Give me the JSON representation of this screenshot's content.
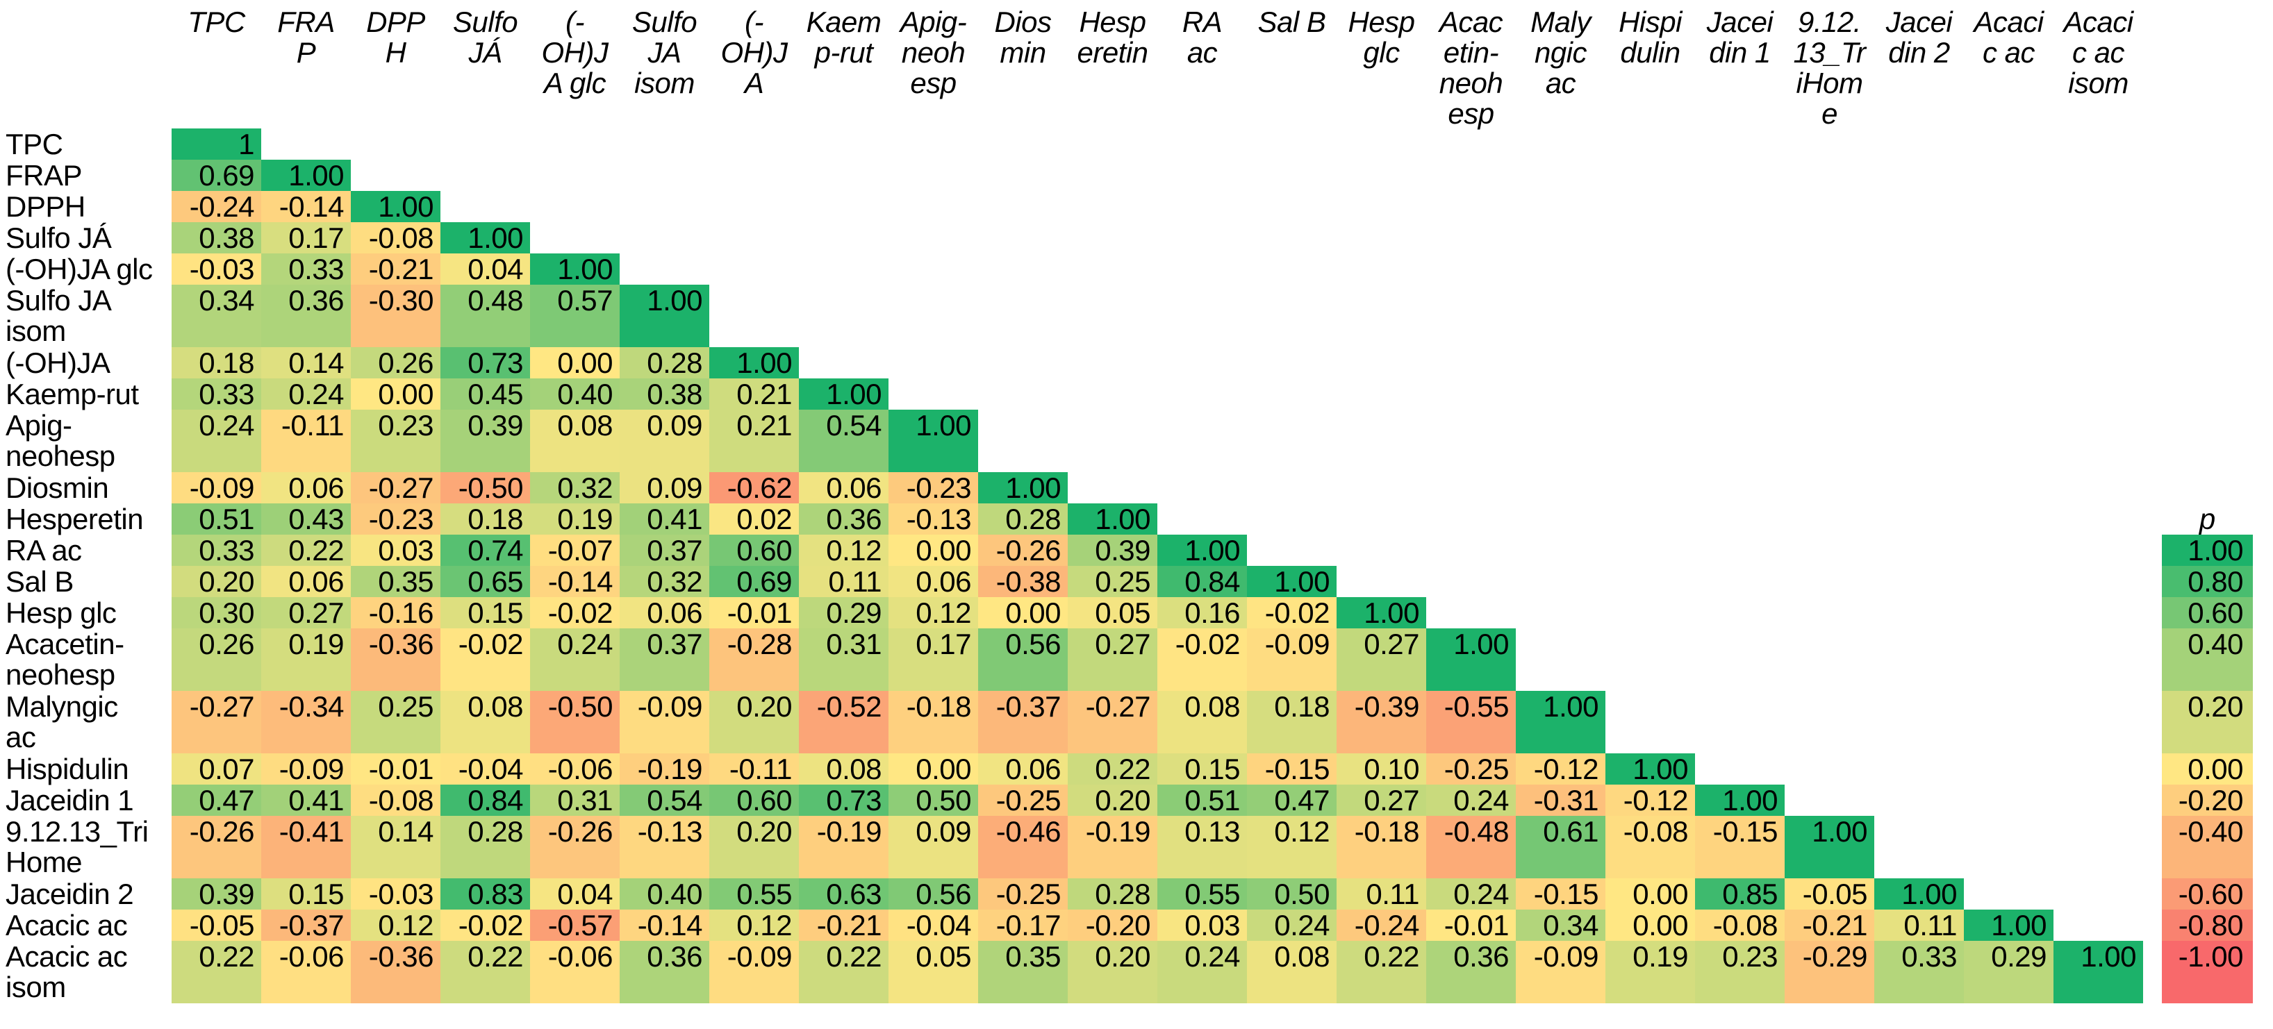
{
  "legend": {
    "header": "p"
  },
  "chart_data": {
    "type": "heatmap",
    "subtype": "correlation-matrix-lower-triangular",
    "title": "",
    "xlabel": "",
    "ylabel": "",
    "grid": false,
    "legend_position": "right",
    "categories": [
      "TPC",
      "FRAP",
      "DPPH",
      "Sulfo JÁ",
      "(-OH)JA glc",
      "Sulfo JA isom",
      "(-OH)JA",
      "Kaemp-rut",
      "Apig-neohesp",
      "Diosmin",
      "Hesperetin",
      "RA ac",
      "Sal B",
      "Hesp glc",
      "Acacetin-neohesp",
      "Malyngic ac",
      "Hispidulin",
      "Jaceidin 1",
      "9.12.13_TriHome",
      "Jaceidin 2",
      "Acacic ac",
      "Acacic ac isom"
    ],
    "row_labels_display": [
      "TPC",
      "FRAP",
      "DPPH",
      "Sulfo JÁ",
      "(-OH)JA glc",
      "Sulfo JA\nisom",
      "(-OH)JA",
      "Kaemp-rut",
      "Apig-\nneohesp",
      "Diosmin",
      "Hesperetin",
      "RA ac",
      "Sal B",
      "Hesp glc",
      "Acacetin-\nneohesp",
      "Malyngic\nac",
      "Hispidulin",
      "Jaceidin 1",
      "9.12.13_Tri\nHome",
      "Jaceidin 2",
      "Acacic ac",
      "Acacic ac\nisom"
    ],
    "col_labels_display": [
      "TPC",
      "FRA\nP",
      "DPP\nH",
      "Sulfo\nJÁ",
      "(-\nOH)J\nA glc",
      "Sulfo\nJA\nisom",
      "(-\nOH)J\nA",
      "Kaem\np-rut",
      "Apig-\nneoh\nesp",
      "Dios\nmin",
      "Hesp\neretin",
      "RA\nac",
      "Sal B",
      "Hesp\nglc",
      "Acac\netin-\nneoh\nesp",
      "Maly\nngic\nac",
      "Hispi\ndulin",
      "Jacei\ndin 1",
      "9.12.\n13_Tr\niHom\ne",
      "Jacei\ndin 2",
      "Acaci\nc ac",
      "Acaci\nc ac\nisom"
    ],
    "matrix_lower_triangle": [
      [
        1
      ],
      [
        0.69,
        1.0
      ],
      [
        -0.24,
        -0.14,
        1.0
      ],
      [
        0.38,
        0.17,
        -0.08,
        1.0
      ],
      [
        -0.03,
        0.33,
        -0.21,
        0.04,
        1.0
      ],
      [
        0.34,
        0.36,
        -0.3,
        0.48,
        0.57,
        1.0
      ],
      [
        0.18,
        0.14,
        0.26,
        0.73,
        0.0,
        0.28,
        1.0
      ],
      [
        0.33,
        0.24,
        0.0,
        0.45,
        0.4,
        0.38,
        0.21,
        1.0
      ],
      [
        0.24,
        -0.11,
        0.23,
        0.39,
        0.08,
        0.09,
        0.21,
        0.54,
        1.0
      ],
      [
        -0.09,
        0.06,
        -0.27,
        -0.5,
        0.32,
        0.09,
        -0.62,
        0.06,
        -0.23,
        1.0
      ],
      [
        0.51,
        0.43,
        -0.23,
        0.18,
        0.19,
        0.41,
        0.02,
        0.36,
        -0.13,
        0.28,
        1.0
      ],
      [
        0.33,
        0.22,
        0.03,
        0.74,
        -0.07,
        0.37,
        0.6,
        0.12,
        0.0,
        -0.26,
        0.39,
        1.0
      ],
      [
        0.2,
        0.06,
        0.35,
        0.65,
        -0.14,
        0.32,
        0.69,
        0.11,
        0.06,
        -0.38,
        0.25,
        0.84,
        1.0
      ],
      [
        0.3,
        0.27,
        -0.16,
        0.15,
        -0.02,
        0.06,
        -0.01,
        0.29,
        0.12,
        0.0,
        0.05,
        0.16,
        -0.02,
        1.0
      ],
      [
        0.26,
        0.19,
        -0.36,
        -0.02,
        0.24,
        0.37,
        -0.28,
        0.31,
        0.17,
        0.56,
        0.27,
        -0.02,
        -0.09,
        0.27,
        1.0
      ],
      [
        -0.27,
        -0.34,
        0.25,
        0.08,
        -0.5,
        -0.09,
        0.2,
        -0.52,
        -0.18,
        -0.37,
        -0.27,
        0.08,
        0.18,
        -0.39,
        -0.55,
        1.0
      ],
      [
        0.07,
        -0.09,
        -0.01,
        -0.04,
        -0.06,
        -0.19,
        -0.11,
        0.08,
        0.0,
        0.06,
        0.22,
        0.15,
        -0.15,
        0.1,
        -0.25,
        -0.12,
        1.0
      ],
      [
        0.47,
        0.41,
        -0.08,
        0.84,
        0.31,
        0.54,
        0.6,
        0.73,
        0.5,
        -0.25,
        0.2,
        0.51,
        0.47,
        0.27,
        0.24,
        -0.31,
        -0.12,
        1.0
      ],
      [
        -0.26,
        -0.41,
        0.14,
        0.28,
        -0.26,
        -0.13,
        0.2,
        -0.19,
        0.09,
        -0.46,
        -0.19,
        0.13,
        0.12,
        -0.18,
        -0.48,
        0.61,
        -0.08,
        -0.15,
        1.0
      ],
      [
        0.39,
        0.15,
        -0.03,
        0.83,
        0.04,
        0.4,
        0.55,
        0.63,
        0.56,
        -0.25,
        0.28,
        0.55,
        0.5,
        0.11,
        0.24,
        -0.15,
        0.0,
        0.85,
        -0.05,
        1.0
      ],
      [
        -0.05,
        -0.37,
        0.12,
        -0.02,
        -0.57,
        -0.14,
        0.12,
        -0.21,
        -0.04,
        -0.17,
        -0.2,
        0.03,
        0.24,
        -0.24,
        -0.01,
        0.34,
        0.0,
        -0.08,
        -0.21,
        0.11,
        1.0
      ],
      [
        0.22,
        -0.06,
        -0.36,
        0.22,
        -0.06,
        0.36,
        -0.09,
        0.22,
        0.05,
        0.35,
        0.2,
        0.24,
        0.08,
        0.22,
        0.36,
        -0.09,
        0.19,
        0.23,
        -0.29,
        0.33,
        0.29,
        1.0
      ]
    ],
    "first_diagonal_display": "1",
    "legend_label": "p",
    "legend_ticks": [
      1.0,
      0.8,
      0.6,
      0.4,
      0.2,
      0.0,
      -0.2,
      -0.4,
      -0.6,
      -0.8,
      -1.0
    ],
    "value_range": [
      -1,
      1
    ],
    "color_scale": {
      "min_color": "#F8696B",
      "mid_color": "#FFE783",
      "max_color": "#1CB26A",
      "domain": [
        -1,
        0,
        1
      ]
    }
  }
}
